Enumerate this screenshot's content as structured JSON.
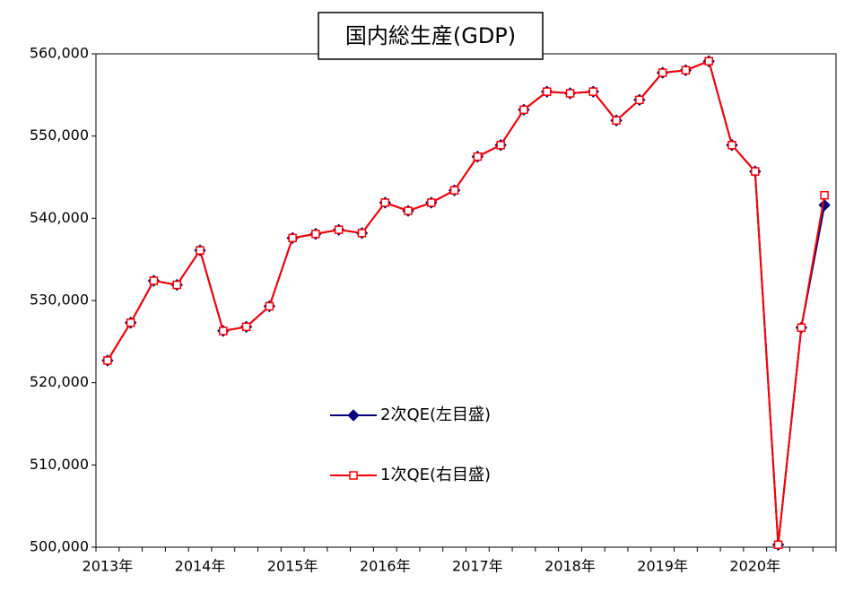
{
  "chart_data": {
    "type": "line",
    "title": "国内総生産(GDP)",
    "categories": [
      "2013年",
      null,
      null,
      null,
      "2014年",
      null,
      null,
      null,
      "2015年",
      null,
      null,
      null,
      "2016年",
      null,
      null,
      null,
      "2017年",
      null,
      null,
      null,
      "2018年",
      null,
      null,
      null,
      "2019年",
      null,
      null,
      null,
      "2020年",
      null,
      null,
      null
    ],
    "series": [
      {
        "name": "2次QE(左目盛)",
        "color": "#000080",
        "marker": "diamond",
        "values": [
          522700,
          527300,
          532400,
          531900,
          536100,
          526300,
          526800,
          529300,
          537600,
          538100,
          538600,
          538200,
          541900,
          540900,
          541900,
          543400,
          547500,
          548900,
          553200,
          555400,
          555200,
          555400,
          551900,
          554400,
          557700,
          558000,
          559100,
          548900,
          545700,
          500300,
          526700,
          541600
        ]
      },
      {
        "name": "1次QE(右目盛)",
        "color": "#ff0000",
        "marker": "square",
        "values": [
          522700,
          527300,
          532400,
          531900,
          536100,
          526300,
          526800,
          529300,
          537600,
          538100,
          538600,
          538200,
          541900,
          540900,
          541900,
          543400,
          547500,
          548900,
          553200,
          555400,
          555200,
          555400,
          551900,
          554400,
          557700,
          558000,
          559100,
          548900,
          545700,
          500300,
          526700,
          542800
        ]
      }
    ],
    "ylim": [
      500000,
      560000
    ],
    "yticks": [
      {
        "value": 500000,
        "label": "500,000"
      },
      {
        "value": 510000,
        "label": "510,000"
      },
      {
        "value": 520000,
        "label": "520,000"
      },
      {
        "value": 530000,
        "label": "530,000"
      },
      {
        "value": 540000,
        "label": "540,000"
      },
      {
        "value": 550000,
        "label": "550,000"
      },
      {
        "value": 560000,
        "label": "560,000"
      }
    ],
    "grid": false
  }
}
